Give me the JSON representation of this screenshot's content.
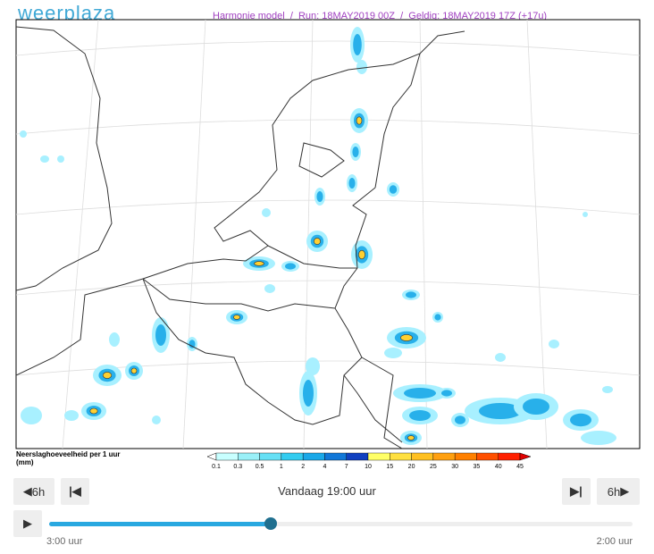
{
  "header": {
    "logo": "weerplaza",
    "run_info": "Harmonie model  /  Run: 18MAY2019 00Z  /  Geldig: 18MAY2019 17Z (+17u)"
  },
  "legend": {
    "title_line1": "Neerslaghoeveelheid per 1 uur",
    "title_line2": "(mm)",
    "labels": [
      "0.1",
      "0.3",
      "0.5",
      "1",
      "2",
      "4",
      "7",
      "10",
      "15",
      "20",
      "25",
      "30",
      "35",
      "40",
      "45"
    ]
  },
  "controls": {
    "back": "6h",
    "forward": "6h",
    "current_time": "Vandaag 19:00 uur",
    "start_label": "3:00 uur",
    "end_label": "2:00 uur"
  }
}
